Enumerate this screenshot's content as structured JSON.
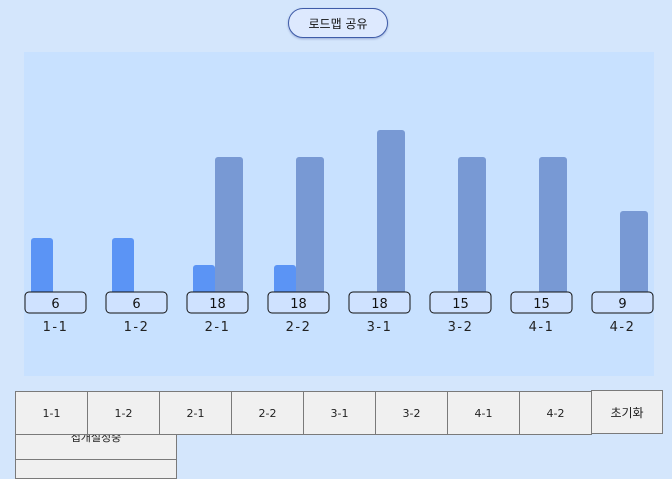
{
  "header": {
    "share_label": "로드맵 공유"
  },
  "chart_data": {
    "type": "bar",
    "categories": [
      "1-1",
      "1-2",
      "2-1",
      "2-2",
      "3-1",
      "3-2",
      "4-1",
      "4-2"
    ],
    "value_labels": [
      "6",
      "6",
      "18",
      "18",
      "18",
      "15",
      "15",
      "9"
    ],
    "series": [
      {
        "values": [
          2,
          2,
          1,
          1,
          0,
          0,
          0,
          0
        ],
        "color": "#5b94f5"
      },
      {
        "values": [
          0,
          0,
          5,
          5,
          6,
          5,
          5,
          3
        ],
        "color": "#7899d4"
      }
    ],
    "ylim": [
      0,
      6
    ],
    "grid": false
  },
  "nav": {
    "buttons": [
      "1-1",
      "1-2",
      "2-1",
      "2-2",
      "3-1",
      "3-2",
      "4-1",
      "4-2"
    ],
    "reset_label": "초기화"
  },
  "leftover": {
    "label": "접개설정중"
  }
}
